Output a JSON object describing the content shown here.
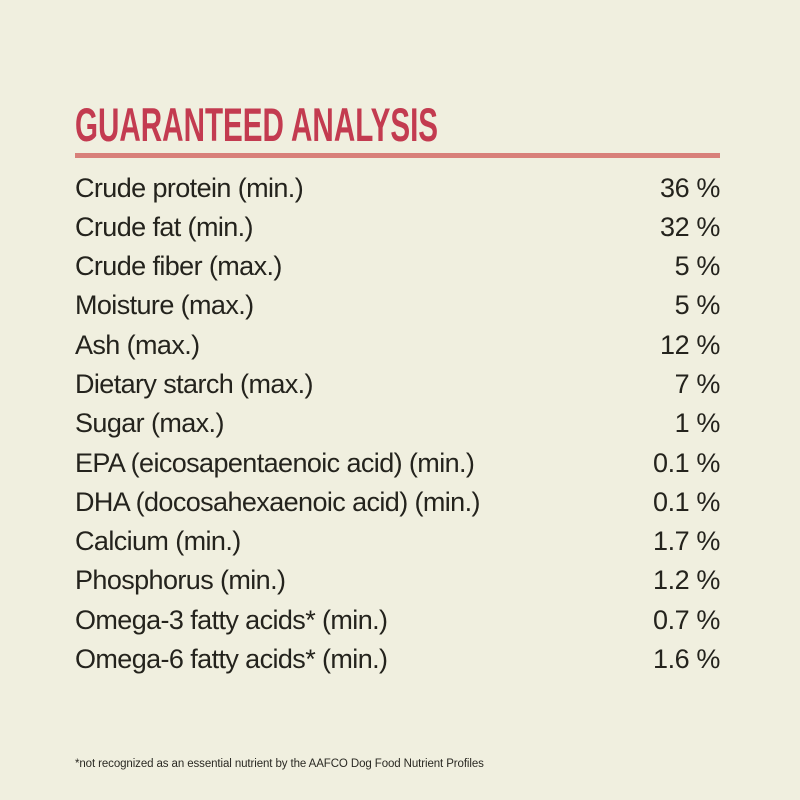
{
  "page": {
    "background_color": "#f0efdf",
    "accent_red": "#c33b50",
    "rule_color": "#d8807a",
    "text_color": "#24231d"
  },
  "title": "GUARANTEED ANALYSIS",
  "table": {
    "rows": [
      {
        "label": "Crude protein (min.)",
        "value": "36 %"
      },
      {
        "label": "Crude fat (min.)",
        "value": "32 %"
      },
      {
        "label": "Crude fiber (max.)",
        "value": "5 %"
      },
      {
        "label": "Moisture (max.)",
        "value": "5 %"
      },
      {
        "label": "Ash (max.)",
        "value": "12 %"
      },
      {
        "label": "Dietary starch (max.)",
        "value": "7 %"
      },
      {
        "label": "Sugar (max.)",
        "value": "1 %"
      },
      {
        "label": "EPA (eicosapentaenoic acid) (min.)",
        "value": "0.1 %"
      },
      {
        "label": "DHA (docosahexaenoic acid) (min.)",
        "value": "0.1 %"
      },
      {
        "label": "Calcium (min.)",
        "value": "1.7 %"
      },
      {
        "label": "Phosphorus (min.)",
        "value": "1.2 %"
      },
      {
        "label": "Omega-3 fatty acids* (min.)",
        "value": "0.7 %"
      },
      {
        "label": "Omega-6 fatty acids* (min.)",
        "value": "1.6 %"
      }
    ]
  },
  "footnote": "*not recognized as an essential nutrient by the AAFCO Dog Food Nutrient Profiles"
}
